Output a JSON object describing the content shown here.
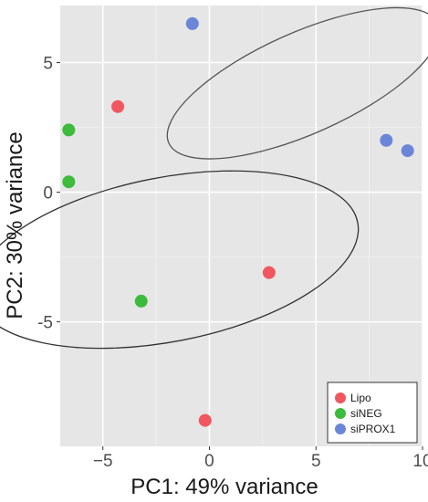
{
  "chart_data": {
    "type": "scatter",
    "xlabel": "PC1: 49% variance",
    "ylabel": "PC2: 30% variance",
    "xlim": [
      -7.0,
      10.0
    ],
    "ylim": [
      -9.8,
      7.2
    ],
    "x_ticks": [
      {
        "value": -5,
        "label": "−5"
      },
      {
        "value": 0,
        "label": "0"
      },
      {
        "value": 5,
        "label": "5"
      },
      {
        "value": 10,
        "label": "10"
      }
    ],
    "y_ticks": [
      {
        "value": 5,
        "label": "5"
      },
      {
        "value": 0,
        "label": "0"
      },
      {
        "value": -5,
        "label": "-5"
      }
    ],
    "grid": true,
    "background": "#e6e6e6",
    "grid_color": "#ffffff",
    "legend_position": "bottom-right",
    "series": [
      {
        "name": "Lipo",
        "color": "#f05760",
        "points": [
          [
            -4.3,
            3.3
          ],
          [
            2.8,
            -3.1
          ],
          [
            -0.2,
            -8.8
          ]
        ]
      },
      {
        "name": "siNEG",
        "color": "#3cbb3c",
        "points": [
          [
            -6.6,
            2.4
          ],
          [
            -6.6,
            0.4
          ],
          [
            -3.2,
            -4.2
          ]
        ]
      },
      {
        "name": "siPROX1",
        "color": "#6b86d8",
        "points": [
          [
            -0.8,
            6.5
          ],
          [
            8.3,
            2.0
          ],
          [
            9.3,
            1.6
          ]
        ]
      }
    ],
    "ellipses": [
      {
        "cx": -2.0,
        "cy": -2.6,
        "rx": 3.85,
        "ry": 7.5,
        "angle_deg": 79,
        "color": "#333333"
      },
      {
        "cx": 4.4,
        "cy": 4.2,
        "rx": 6.9,
        "ry": 1.95,
        "angle_deg": -24,
        "color": "#555555"
      }
    ]
  }
}
